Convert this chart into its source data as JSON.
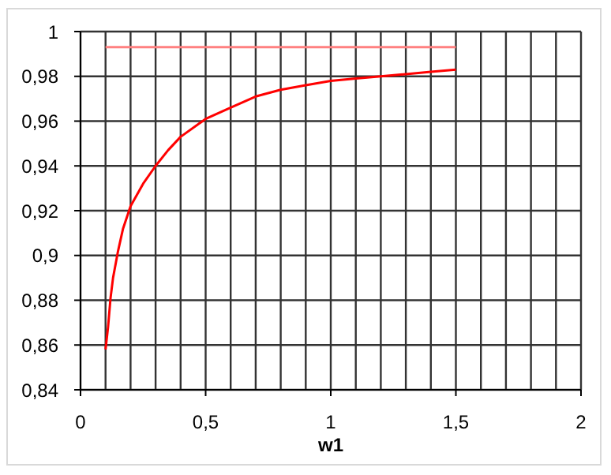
{
  "chart_data": {
    "type": "line",
    "xlabel": "w1",
    "xlim": [
      0,
      2
    ],
    "xticks": [
      0,
      {
        "value": 0.1,
        "label": null
      },
      {
        "value": 0.2,
        "label": null
      },
      {
        "value": 0.3,
        "label": null
      },
      {
        "value": 0.4,
        "label": null
      },
      {
        "value": 0.5,
        "label": "0,5"
      },
      {
        "value": 0.6,
        "label": null
      },
      {
        "value": 0.7,
        "label": null
      },
      {
        "value": 0.8,
        "label": null
      },
      {
        "value": 0.9,
        "label": null
      },
      1,
      {
        "value": 1.1,
        "label": null
      },
      {
        "value": 1.2,
        "label": null
      },
      {
        "value": 1.3,
        "label": null
      },
      {
        "value": 1.4,
        "label": null
      },
      {
        "value": 1.5,
        "label": "1,5"
      },
      {
        "value": 1.6,
        "label": null
      },
      {
        "value": 1.7,
        "label": null
      },
      {
        "value": 1.8,
        "label": null
      },
      {
        "value": 1.9,
        "label": null
      },
      2
    ],
    "ylim": [
      0.84,
      1
    ],
    "yticks": [
      {
        "value": 0.84,
        "label": "0,84"
      },
      {
        "value": 0.86,
        "label": "0,86"
      },
      {
        "value": 0.88,
        "label": "0,88"
      },
      {
        "value": 0.9,
        "label": "0,9"
      },
      {
        "value": 0.92,
        "label": "0,92"
      },
      {
        "value": 0.94,
        "label": "0,94"
      },
      {
        "value": 0.96,
        "label": "0,96"
      },
      {
        "value": 0.98,
        "label": "0,98"
      },
      1
    ],
    "grid": true,
    "marker": "none",
    "series": [
      {
        "color": "#ff8080",
        "x": [
          0.1,
          1.5
        ],
        "values": [
          0.993,
          0.993
        ]
      },
      {
        "color": "#ff0000",
        "x": [
          0.1,
          0.11,
          0.12,
          0.13,
          0.15,
          0.17,
          0.2,
          0.25,
          0.3,
          0.35,
          0.4,
          0.5,
          0.6,
          0.7,
          0.8,
          0.9,
          1.0,
          1.1,
          1.2,
          1.3,
          1.4,
          1.5
        ],
        "values": [
          0.858,
          0.868,
          0.881,
          0.89,
          0.902,
          0.912,
          0.922,
          0.932,
          0.94,
          0.947,
          0.953,
          0.961,
          0.966,
          0.971,
          0.974,
          0.976,
          0.978,
          0.979,
          0.98,
          0.981,
          0.982,
          0.983
        ]
      }
    ]
  }
}
